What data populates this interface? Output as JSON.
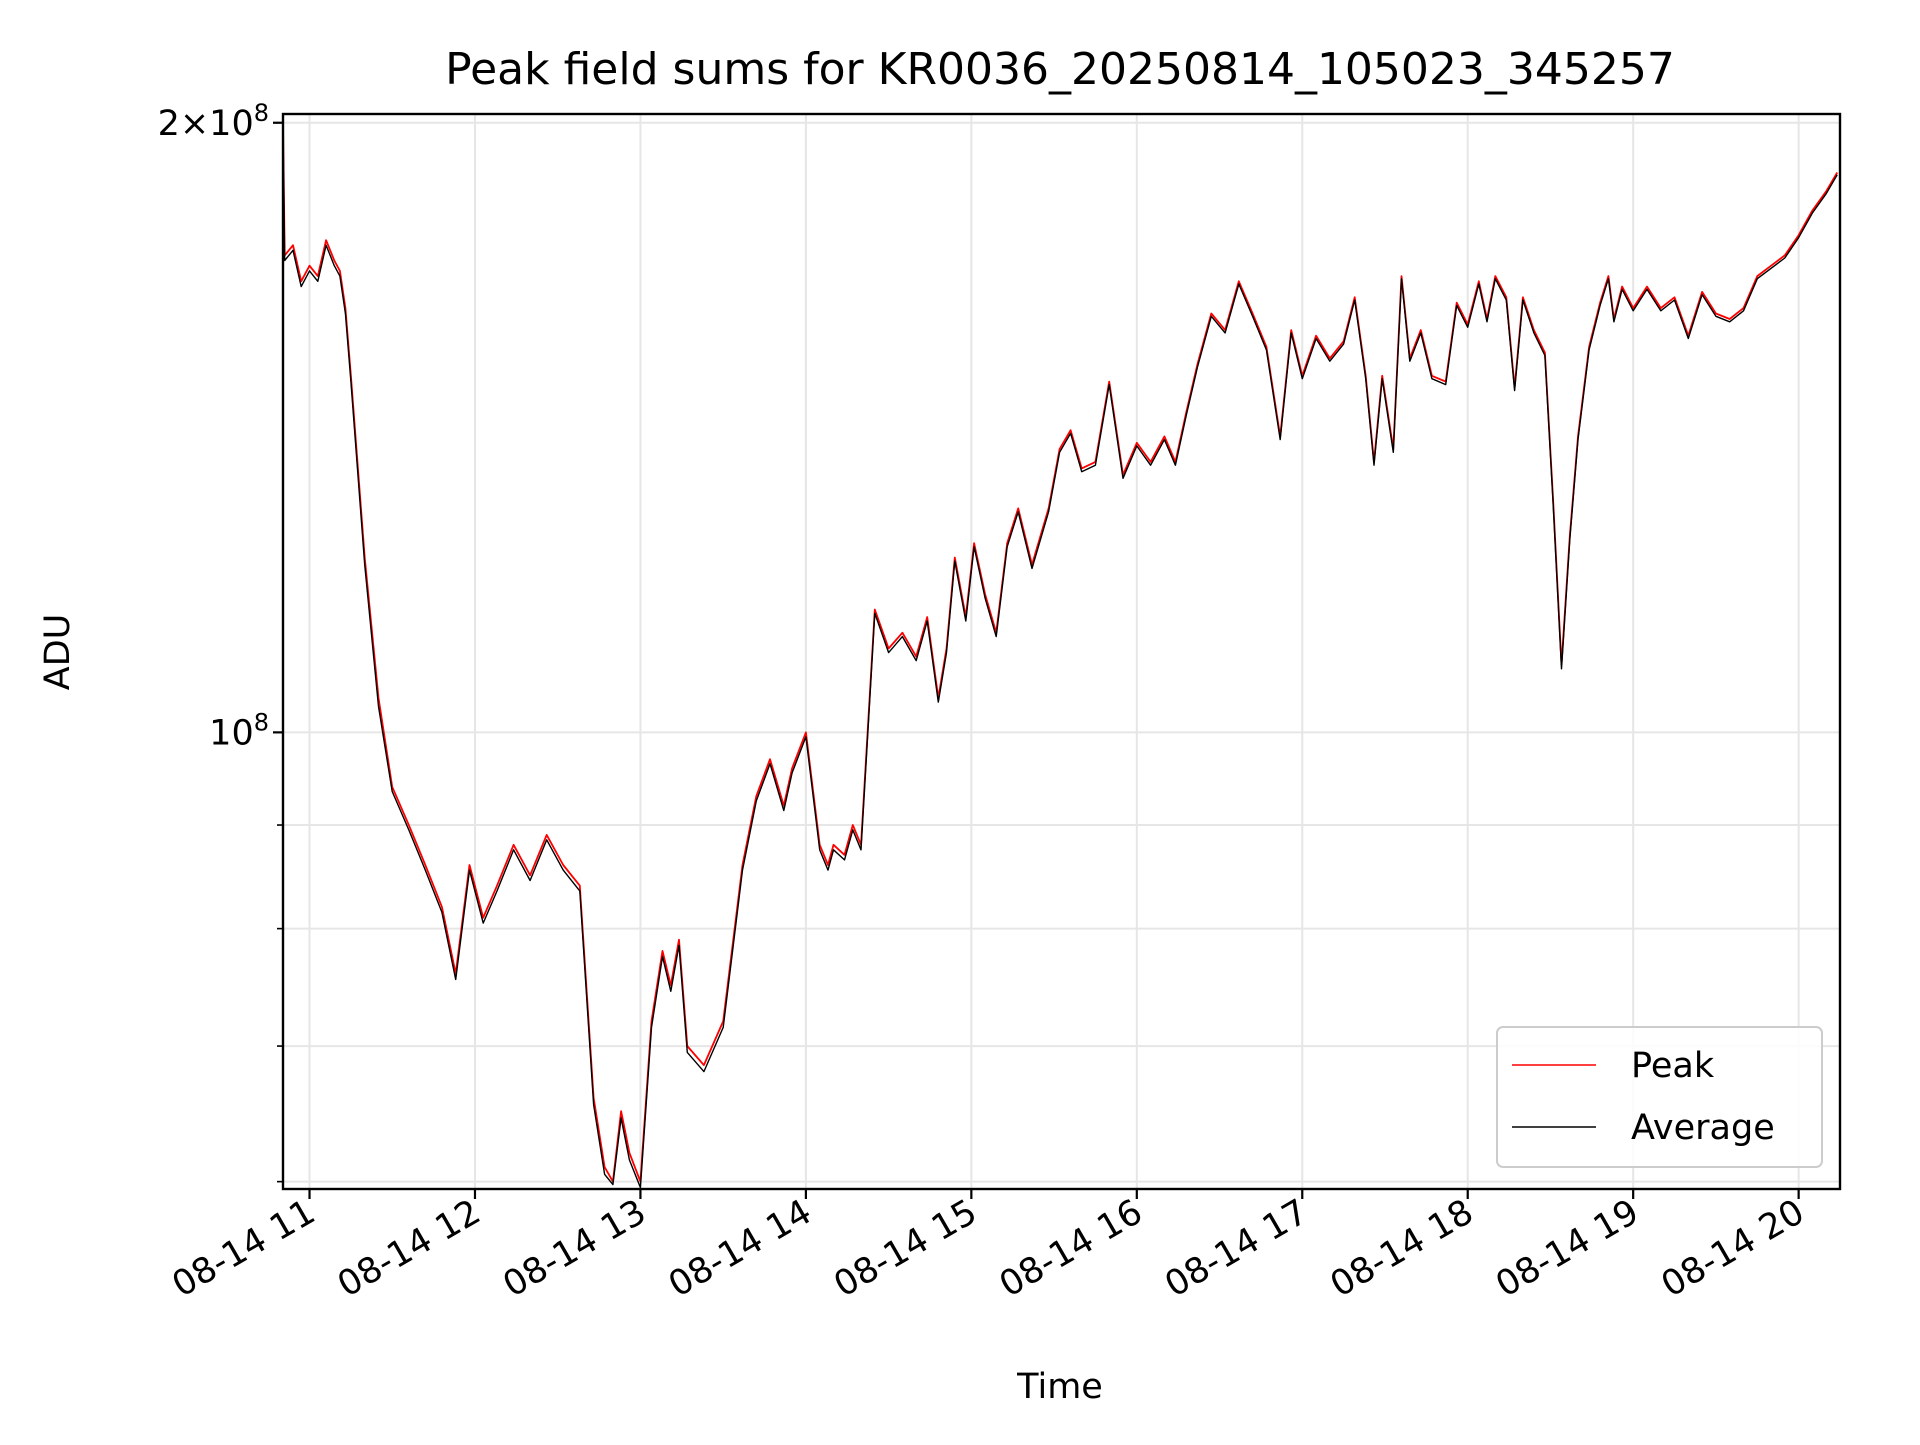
{
  "chart_data": {
    "type": "line",
    "title": "Peak field sums for KR0036_20250814_105023_345257",
    "xlabel": "Time",
    "ylabel": "ADU",
    "yscale": "log",
    "ylim": [
      59500000,
      202000000
    ],
    "y_major_ticks": [
      {
        "value": 100000000,
        "label_base": "10",
        "label_exp": "8"
      },
      {
        "value": 200000000,
        "label_base": "2×10",
        "label_exp": "8"
      }
    ],
    "y_minor_ticks": [
      60000000,
      70000000,
      80000000,
      90000000
    ],
    "xlim": [
      "2025-08-14T10:50:23",
      "2025-08-14T20:15:00"
    ],
    "x_ticks": [
      {
        "value": "2025-08-14T11:00",
        "label": "08-14 11"
      },
      {
        "value": "2025-08-14T12:00",
        "label": "08-14 12"
      },
      {
        "value": "2025-08-14T13:00",
        "label": "08-14 13"
      },
      {
        "value": "2025-08-14T14:00",
        "label": "08-14 14"
      },
      {
        "value": "2025-08-14T15:00",
        "label": "08-14 15"
      },
      {
        "value": "2025-08-14T16:00",
        "label": "08-14 16"
      },
      {
        "value": "2025-08-14T17:00",
        "label": "08-14 17"
      },
      {
        "value": "2025-08-14T18:00",
        "label": "08-14 18"
      },
      {
        "value": "2025-08-14T19:00",
        "label": "08-14 19"
      },
      {
        "value": "2025-08-14T20:00",
        "label": "08-14 20"
      }
    ],
    "grid": true,
    "legend_position": "lower-right",
    "series": [
      {
        "name": "Peak",
        "color": "#ff0000"
      },
      {
        "name": "Average",
        "color": "#000000"
      }
    ],
    "x": [
      "2025-08-14T10:50:23",
      "2025-08-14T10:51",
      "2025-08-14T10:54",
      "2025-08-14T10:57",
      "2025-08-14T11:00",
      "2025-08-14T11:03",
      "2025-08-14T11:06",
      "2025-08-14T11:09",
      "2025-08-14T11:11",
      "2025-08-14T11:13",
      "2025-08-14T11:15",
      "2025-08-14T11:20",
      "2025-08-14T11:25",
      "2025-08-14T11:30",
      "2025-08-14T11:36",
      "2025-08-14T11:42",
      "2025-08-14T11:48",
      "2025-08-14T11:53",
      "2025-08-14T11:58",
      "2025-08-14T12:03",
      "2025-08-14T12:08",
      "2025-08-14T12:14",
      "2025-08-14T12:20",
      "2025-08-14T12:26",
      "2025-08-14T12:32",
      "2025-08-14T12:38",
      "2025-08-14T12:43",
      "2025-08-14T12:47",
      "2025-08-14T12:50",
      "2025-08-14T12:53",
      "2025-08-14T12:56",
      "2025-08-14T13:00",
      "2025-08-14T13:04",
      "2025-08-14T13:08",
      "2025-08-14T13:11",
      "2025-08-14T13:14",
      "2025-08-14T13:17",
      "2025-08-14T13:23",
      "2025-08-14T13:30",
      "2025-08-14T13:37",
      "2025-08-14T13:42",
      "2025-08-14T13:47",
      "2025-08-14T13:52",
      "2025-08-14T13:55",
      "2025-08-14T14:00",
      "2025-08-14T14:05",
      "2025-08-14T14:08",
      "2025-08-14T14:10",
      "2025-08-14T14:14",
      "2025-08-14T14:17",
      "2025-08-14T14:20",
      "2025-08-14T14:25",
      "2025-08-14T14:30",
      "2025-08-14T14:35",
      "2025-08-14T14:40",
      "2025-08-14T14:44",
      "2025-08-14T14:48",
      "2025-08-14T14:51",
      "2025-08-14T14:54",
      "2025-08-14T14:58",
      "2025-08-14T15:01",
      "2025-08-14T15:05",
      "2025-08-14T15:09",
      "2025-08-14T15:13",
      "2025-08-14T15:17",
      "2025-08-14T15:22",
      "2025-08-14T15:28",
      "2025-08-14T15:32",
      "2025-08-14T15:36",
      "2025-08-14T15:40",
      "2025-08-14T15:45",
      "2025-08-14T15:50",
      "2025-08-14T15:55",
      "2025-08-14T16:00",
      "2025-08-14T16:05",
      "2025-08-14T16:10",
      "2025-08-14T16:14",
      "2025-08-14T16:18",
      "2025-08-14T16:22",
      "2025-08-14T16:27",
      "2025-08-14T16:32",
      "2025-08-14T16:37",
      "2025-08-14T16:42",
      "2025-08-14T16:47",
      "2025-08-14T16:52",
      "2025-08-14T16:56",
      "2025-08-14T17:00",
      "2025-08-14T17:05",
      "2025-08-14T17:10",
      "2025-08-14T17:15",
      "2025-08-14T17:19",
      "2025-08-14T17:23",
      "2025-08-14T17:26",
      "2025-08-14T17:29",
      "2025-08-14T17:33",
      "2025-08-14T17:36",
      "2025-08-14T17:39",
      "2025-08-14T17:43",
      "2025-08-14T17:47",
      "2025-08-14T17:52",
      "2025-08-14T17:56",
      "2025-08-14T18:00",
      "2025-08-14T18:04",
      "2025-08-14T18:07",
      "2025-08-14T18:10",
      "2025-08-14T18:14",
      "2025-08-14T18:17",
      "2025-08-14T18:20",
      "2025-08-14T18:24",
      "2025-08-14T18:28",
      "2025-08-14T18:31",
      "2025-08-14T18:34",
      "2025-08-14T18:37",
      "2025-08-14T18:40",
      "2025-08-14T18:44",
      "2025-08-14T18:48",
      "2025-08-14T18:51",
      "2025-08-14T18:53",
      "2025-08-14T18:56",
      "2025-08-14T19:00",
      "2025-08-14T19:05",
      "2025-08-14T19:10",
      "2025-08-14T19:15",
      "2025-08-14T19:20",
      "2025-08-14T19:25",
      "2025-08-14T19:30",
      "2025-08-14T19:35",
      "2025-08-14T19:40",
      "2025-08-14T19:45",
      "2025-08-14T19:50",
      "2025-08-14T19:55",
      "2025-08-14T20:00",
      "2025-08-14T20:05",
      "2025-08-14T20:10",
      "2025-08-14T20:14"
    ],
    "peak": [
      200000000,
      172000000,
      174000000,
      167000000,
      170000000,
      168000000,
      175000000,
      171000000,
      169000000,
      162000000,
      150000000,
      122000000,
      104000000,
      94000000,
      90000000,
      86000000,
      82000000,
      76000000,
      86000000,
      81000000,
      84000000,
      88000000,
      85000000,
      89000000,
      86000000,
      84000000,
      66000000,
      61000000,
      60000000,
      65000000,
      62000000,
      60000000,
      72000000,
      78000000,
      75000000,
      79000000,
      70000000,
      68500000,
      72000000,
      86000000,
      93000000,
      97000000,
      92000000,
      96000000,
      100000000,
      88000000,
      86000000,
      88000000,
      87000000,
      90000000,
      88000000,
      115000000,
      110000000,
      112000000,
      109000000,
      114000000,
      104000000,
      110000000,
      122000000,
      114000000,
      124000000,
      117000000,
      112000000,
      124000000,
      129000000,
      121000000,
      129000000,
      138000000,
      141000000,
      135000000,
      136000000,
      149000000,
      134000000,
      139000000,
      136000000,
      140000000,
      136000000,
      144000000,
      152000000,
      161000000,
      158000000,
      167000000,
      161000000,
      155000000,
      140000000,
      158000000,
      150000000,
      157000000,
      153000000,
      156000000,
      164000000,
      150000000,
      136000000,
      150000000,
      138000000,
      168000000,
      153000000,
      158000000,
      150000000,
      149000000,
      163000000,
      159000000,
      167000000,
      160000000,
      168000000,
      164000000,
      148000000,
      164000000,
      158000000,
      154000000,
      130000000,
      108000000,
      125000000,
      140000000,
      155000000,
      163000000,
      168000000,
      160000000,
      166000000,
      162000000,
      166000000,
      162000000,
      164000000,
      157000000,
      165000000,
      161000000,
      160000000,
      162000000,
      168000000,
      170000000,
      172000000,
      176000000,
      181000000,
      185000000,
      189000000,
      193000000
    ],
    "average": [
      199000000,
      171000000,
      173000000,
      166000000,
      169000000,
      167000000,
      174000000,
      170000000,
      168000000,
      161000000,
      149000000,
      121000000,
      103000000,
      93500000,
      89500000,
      85500000,
      81500000,
      75500000,
      85500000,
      80500000,
      83500000,
      87500000,
      84500000,
      88500000,
      85500000,
      83500000,
      65500000,
      60500000,
      59800000,
      64500000,
      61500000,
      59600000,
      71500000,
      77500000,
      74500000,
      78500000,
      69500000,
      68000000,
      71500000,
      85500000,
      92500000,
      96500000,
      91500000,
      95500000,
      99500000,
      87500000,
      85500000,
      87500000,
      86500000,
      89500000,
      87500000,
      114500000,
      109500000,
      111500000,
      108500000,
      113500000,
      103500000,
      109500000,
      121500000,
      113500000,
      123500000,
      116500000,
      111500000,
      123500000,
      128500000,
      120500000,
      128500000,
      137500000,
      140500000,
      134500000,
      135500000,
      148500000,
      133500000,
      138500000,
      135500000,
      139500000,
      135500000,
      143500000,
      151500000,
      160500000,
      157500000,
      166500000,
      160500000,
      154500000,
      139500000,
      157500000,
      149500000,
      156500000,
      152500000,
      155500000,
      163500000,
      149500000,
      135500000,
      149500000,
      137500000,
      167500000,
      152500000,
      157500000,
      149500000,
      148500000,
      162500000,
      158500000,
      166500000,
      159500000,
      167500000,
      163500000,
      147500000,
      163500000,
      157500000,
      153500000,
      129500000,
      107500000,
      124500000,
      139500000,
      154500000,
      162500000,
      167500000,
      159500000,
      165500000,
      161500000,
      165500000,
      161500000,
      163500000,
      156500000,
      164500000,
      160500000,
      159500000,
      161500000,
      167500000,
      169500000,
      171500000,
      175500000,
      180500000,
      184500000,
      188500000,
      192500000
    ]
  }
}
